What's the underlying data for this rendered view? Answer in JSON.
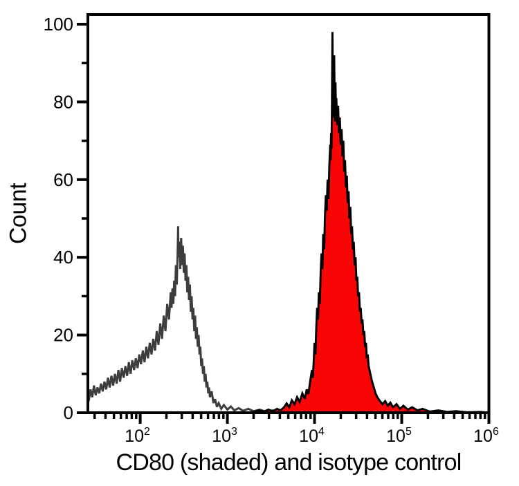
{
  "figure": {
    "background": "#ffffff",
    "axis_color": "#000000",
    "text_color": "#000000"
  },
  "chart_data": {
    "type": "area",
    "subtype": "flow-cytometry-histogram-overlay",
    "x_scale": "log",
    "x_range_log10": [
      1.4,
      6.0
    ],
    "y_range": [
      0,
      102.5
    ],
    "grid": false,
    "legend": "none",
    "x_axis": {
      "label": "CD80 (shaded) and isotype control",
      "tick_base": "10",
      "tick_exponents": [
        "2",
        "3",
        "4",
        "5",
        "6"
      ],
      "tick_exponent_values": [
        2,
        3,
        4,
        5,
        6
      ]
    },
    "y_axis": {
      "label": "Count",
      "major_ticks": [
        "0",
        "20",
        "40",
        "60",
        "80",
        "100"
      ],
      "major_tick_values": [
        0,
        20,
        40,
        60,
        80,
        100
      ],
      "minor_tick_values": [
        10,
        30,
        50,
        70,
        90
      ]
    },
    "series": [
      {
        "name": "isotype control",
        "style": "open",
        "line_color": "#3d3d3d",
        "fill": "none",
        "stroke_width": 3,
        "peak": {
          "x_log10": 2.435,
          "count": 48
        },
        "points_log10x_count": [
          [
            1.4,
            4.5
          ],
          [
            1.41,
            3
          ],
          [
            1.43,
            6
          ],
          [
            1.45,
            4
          ],
          [
            1.47,
            7
          ],
          [
            1.49,
            4.5
          ],
          [
            1.51,
            6.5
          ],
          [
            1.53,
            5
          ],
          [
            1.55,
            7.5
          ],
          [
            1.57,
            5.5
          ],
          [
            1.59,
            8
          ],
          [
            1.61,
            6
          ],
          [
            1.63,
            9
          ],
          [
            1.65,
            6.5
          ],
          [
            1.67,
            9.5
          ],
          [
            1.69,
            7
          ],
          [
            1.71,
            10
          ],
          [
            1.73,
            7.5
          ],
          [
            1.75,
            11
          ],
          [
            1.77,
            8
          ],
          [
            1.79,
            11.5
          ],
          [
            1.81,
            9
          ],
          [
            1.83,
            12
          ],
          [
            1.85,
            9.5
          ],
          [
            1.87,
            13
          ],
          [
            1.89,
            10
          ],
          [
            1.91,
            13.5
          ],
          [
            1.93,
            11
          ],
          [
            1.95,
            14
          ],
          [
            1.97,
            11.5
          ],
          [
            1.99,
            15
          ],
          [
            2.01,
            12.5
          ],
          [
            2.03,
            16
          ],
          [
            2.05,
            13
          ],
          [
            2.07,
            17
          ],
          [
            2.09,
            14
          ],
          [
            2.11,
            18
          ],
          [
            2.13,
            15
          ],
          [
            2.15,
            19
          ],
          [
            2.17,
            16
          ],
          [
            2.19,
            21
          ],
          [
            2.21,
            17.5
          ],
          [
            2.23,
            23
          ],
          [
            2.25,
            19
          ],
          [
            2.27,
            25
          ],
          [
            2.29,
            21
          ],
          [
            2.31,
            28
          ],
          [
            2.33,
            24
          ],
          [
            2.35,
            31
          ],
          [
            2.36,
            27
          ],
          [
            2.37,
            32
          ],
          [
            2.38,
            28
          ],
          [
            2.39,
            34
          ],
          [
            2.4,
            30
          ],
          [
            2.41,
            38
          ],
          [
            2.42,
            33
          ],
          [
            2.43,
            42
          ],
          [
            2.435,
            48
          ],
          [
            2.44,
            40
          ],
          [
            2.45,
            44
          ],
          [
            2.46,
            37
          ],
          [
            2.47,
            45
          ],
          [
            2.48,
            38
          ],
          [
            2.49,
            43
          ],
          [
            2.5,
            36
          ],
          [
            2.51,
            41
          ],
          [
            2.52,
            34
          ],
          [
            2.53,
            38
          ],
          [
            2.54,
            31
          ],
          [
            2.55,
            35
          ],
          [
            2.56,
            29
          ],
          [
            2.57,
            33
          ],
          [
            2.58,
            26
          ],
          [
            2.59,
            30
          ],
          [
            2.6,
            24
          ],
          [
            2.61,
            27
          ],
          [
            2.62,
            21
          ],
          [
            2.63,
            25
          ],
          [
            2.64,
            19
          ],
          [
            2.65,
            22
          ],
          [
            2.66,
            17
          ],
          [
            2.67,
            20
          ],
          [
            2.68,
            15
          ],
          [
            2.69,
            17
          ],
          [
            2.7,
            12
          ],
          [
            2.71,
            14
          ],
          [
            2.72,
            10
          ],
          [
            2.73,
            12
          ],
          [
            2.74,
            8
          ],
          [
            2.75,
            10
          ],
          [
            2.76,
            6.5
          ],
          [
            2.77,
            8
          ],
          [
            2.78,
            5
          ],
          [
            2.79,
            6.5
          ],
          [
            2.8,
            4
          ],
          [
            2.82,
            5.5
          ],
          [
            2.84,
            2.5
          ],
          [
            2.86,
            3.5
          ],
          [
            2.88,
            1.5
          ],
          [
            2.9,
            2.5
          ],
          [
            2.93,
            1
          ],
          [
            2.96,
            2
          ],
          [
            3.0,
            0.8
          ],
          [
            3.04,
            1.6
          ],
          [
            3.08,
            0.6
          ],
          [
            3.13,
            1.2
          ],
          [
            3.18,
            0.5
          ],
          [
            3.24,
            1
          ],
          [
            3.3,
            0.4
          ],
          [
            3.37,
            0.8
          ],
          [
            3.44,
            0.3
          ],
          [
            3.52,
            0.6
          ],
          [
            3.6,
            0.2
          ]
        ]
      },
      {
        "name": "CD80 (shaded)",
        "style": "filled",
        "line_color": "#000000",
        "fill": "#fa0505",
        "stroke_width": 3,
        "peak": {
          "x_log10": 4.205,
          "count": 98
        },
        "points_log10x_count": [
          [
            3.3,
            0.2
          ],
          [
            3.36,
            0.6
          ],
          [
            3.42,
            0.3
          ],
          [
            3.47,
            0.8
          ],
          [
            3.52,
            0.4
          ],
          [
            3.57,
            1
          ],
          [
            3.61,
            0.6
          ],
          [
            3.65,
            1.4
          ],
          [
            3.68,
            2.4
          ],
          [
            3.71,
            1.4
          ],
          [
            3.74,
            3.2
          ],
          [
            3.77,
            2.2
          ],
          [
            3.8,
            4
          ],
          [
            3.83,
            2.8
          ],
          [
            3.86,
            5
          ],
          [
            3.89,
            3.6
          ],
          [
            3.91,
            6
          ],
          [
            3.93,
            4.8
          ],
          [
            3.95,
            8
          ],
          [
            3.97,
            11
          ],
          [
            3.98,
            9
          ],
          [
            3.99,
            13
          ],
          [
            4.0,
            18
          ],
          [
            4.01,
            15
          ],
          [
            4.02,
            22
          ],
          [
            4.03,
            27
          ],
          [
            4.04,
            24
          ],
          [
            4.05,
            31
          ],
          [
            4.06,
            28
          ],
          [
            4.07,
            36
          ],
          [
            4.08,
            41
          ],
          [
            4.09,
            37
          ],
          [
            4.1,
            46
          ],
          [
            4.11,
            42
          ],
          [
            4.12,
            51
          ],
          [
            4.13,
            56
          ],
          [
            4.14,
            52
          ],
          [
            4.15,
            60
          ],
          [
            4.16,
            55
          ],
          [
            4.17,
            64
          ],
          [
            4.18,
            69
          ],
          [
            4.185,
            65
          ],
          [
            4.19,
            72
          ],
          [
            4.195,
            68
          ],
          [
            4.2,
            78
          ],
          [
            4.205,
            98
          ],
          [
            4.21,
            84
          ],
          [
            4.215,
            76
          ],
          [
            4.22,
            80
          ],
          [
            4.225,
            92
          ],
          [
            4.23,
            82
          ],
          [
            4.235,
            75
          ],
          [
            4.24,
            85
          ],
          [
            4.245,
            78
          ],
          [
            4.25,
            81
          ],
          [
            4.26,
            74
          ],
          [
            4.27,
            79
          ],
          [
            4.28,
            72
          ],
          [
            4.29,
            76
          ],
          [
            4.3,
            69
          ],
          [
            4.31,
            73
          ],
          [
            4.32,
            66
          ],
          [
            4.33,
            70
          ],
          [
            4.34,
            62
          ],
          [
            4.35,
            65
          ],
          [
            4.36,
            58
          ],
          [
            4.37,
            61
          ],
          [
            4.38,
            54
          ],
          [
            4.39,
            57
          ],
          [
            4.4,
            50
          ],
          [
            4.41,
            53
          ],
          [
            4.42,
            46
          ],
          [
            4.43,
            48
          ],
          [
            4.44,
            42
          ],
          [
            4.45,
            44
          ],
          [
            4.46,
            38
          ],
          [
            4.47,
            40
          ],
          [
            4.48,
            34
          ],
          [
            4.49,
            35
          ],
          [
            4.5,
            30
          ],
          [
            4.51,
            31
          ],
          [
            4.52,
            26
          ],
          [
            4.53,
            27
          ],
          [
            4.54,
            23
          ],
          [
            4.55,
            24
          ],
          [
            4.56,
            20
          ],
          [
            4.57,
            21
          ],
          [
            4.58,
            17
          ],
          [
            4.59,
            18
          ],
          [
            4.6,
            14
          ],
          [
            4.61,
            15
          ],
          [
            4.62,
            12
          ],
          [
            4.64,
            10
          ],
          [
            4.66,
            8
          ],
          [
            4.68,
            6.5
          ],
          [
            4.7,
            5
          ],
          [
            4.72,
            4
          ],
          [
            4.75,
            3
          ],
          [
            4.78,
            2.2
          ],
          [
            4.81,
            3
          ],
          [
            4.84,
            1.8
          ],
          [
            4.87,
            2.6
          ],
          [
            4.9,
            1.4
          ],
          [
            4.94,
            2.2
          ],
          [
            4.98,
            1
          ],
          [
            5.02,
            1.8
          ],
          [
            5.07,
            0.8
          ],
          [
            5.12,
            1.4
          ],
          [
            5.18,
            0.6
          ],
          [
            5.24,
            1
          ],
          [
            5.32,
            0.3
          ],
          [
            5.42,
            0.6
          ],
          [
            5.52,
            0.2
          ],
          [
            5.62,
            0.4
          ],
          [
            5.75,
            0.1
          ],
          [
            5.9,
            0.2
          ],
          [
            5.95,
            0.1
          ]
        ]
      }
    ]
  }
}
